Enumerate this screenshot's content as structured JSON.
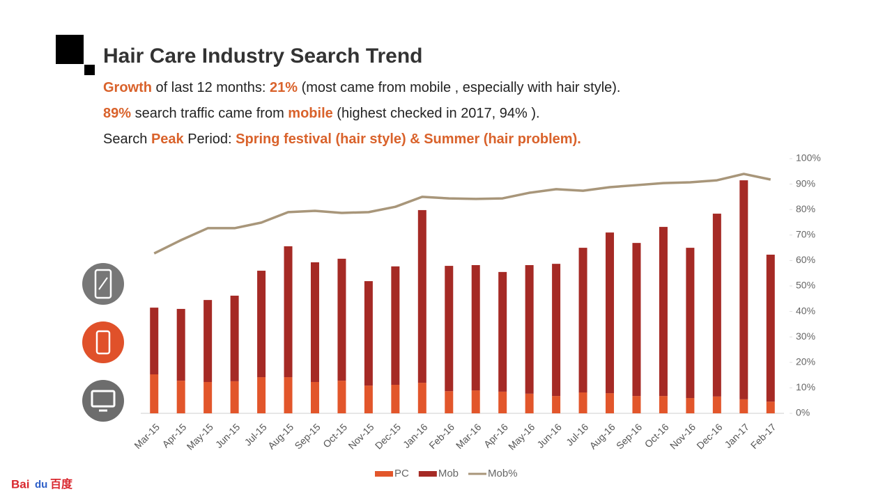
{
  "title": "Hair Care Industry Search Trend",
  "highlights": [
    [
      {
        "text": "Growth",
        "bold": true
      },
      {
        "text": " of last 12 months: ",
        "bold": false
      },
      {
        "text": "21%",
        "bold": true
      },
      {
        "text": " (most came from mobile , especially with hair style).",
        "bold": false
      }
    ],
    [
      {
        "text": "89%",
        "bold": true
      },
      {
        "text": " search traffic came from ",
        "bold": false
      },
      {
        "text": "mobile",
        "bold": true
      },
      {
        "text": " (highest checked in 2017, 94% ).",
        "bold": false
      }
    ],
    [
      {
        "text": "Search ",
        "bold": false
      },
      {
        "text": "Peak",
        "bold": true
      },
      {
        "text": " Period: ",
        "bold": false
      },
      {
        "text": "Spring festival (hair style) & Summer (hair problem).",
        "bold": true
      }
    ]
  ],
  "logo": {
    "latin": "Bai",
    "mark": "du",
    "chinese": "百度"
  },
  "chart_data": {
    "type": "bar",
    "stacked": true,
    "categories": [
      "Mar-15",
      "Apr-15",
      "May-15",
      "Jun-15",
      "Jul-15",
      "Aug-15",
      "Sep-15",
      "Oct-15",
      "Nov-15",
      "Dec-15",
      "Jan-16",
      "Feb-16",
      "Mar-16",
      "Apr-16",
      "May-16",
      "Jun-16",
      "Jul-16",
      "Aug-16",
      "Sep-16",
      "Oct-16",
      "Nov-16",
      "Dec-16",
      "Jan-17",
      "Feb-17"
    ],
    "series": [
      {
        "name": "PC",
        "color": "#e2562b",
        "values": [
          15.3,
          12.8,
          12.3,
          12.6,
          14.2,
          14.2,
          12.3,
          12.8,
          10.9,
          11.2,
          12.0,
          8.7,
          9.0,
          8.5,
          7.7,
          6.8,
          8.2,
          7.9,
          6.8,
          6.8,
          6.0,
          6.6,
          5.5,
          4.6
        ]
      },
      {
        "name": "Mob",
        "color": "#a52a25",
        "values": [
          26.2,
          28.2,
          32.2,
          33.6,
          41.8,
          51.4,
          47.0,
          47.9,
          41.0,
          46.5,
          67.8,
          49.2,
          49.2,
          47.0,
          50.5,
          51.9,
          56.8,
          63.1,
          60.1,
          66.4,
          59.0,
          71.8,
          86.0,
          57.7
        ]
      },
      {
        "name": "Mob%",
        "color": "#a8967a",
        "type": "line",
        "axis": "y2",
        "values": [
          62.8,
          68.0,
          72.7,
          72.7,
          74.9,
          79.0,
          79.5,
          78.7,
          79.0,
          81.1,
          85.0,
          84.4,
          84.2,
          84.4,
          86.6,
          88.0,
          87.4,
          88.8,
          89.6,
          90.4,
          90.7,
          91.5,
          94.0,
          91.8
        ]
      }
    ],
    "ylim": [
      0,
      100
    ],
    "y2lim": [
      0,
      100
    ],
    "y2ticks": [
      {
        "value": 0,
        "label": "0%"
      },
      {
        "value": 10,
        "label": "10%"
      },
      {
        "value": 20,
        "label": "20%"
      },
      {
        "value": 30,
        "label": "30%"
      },
      {
        "value": 40,
        "label": "40%"
      },
      {
        "value": 50,
        "label": "50%"
      },
      {
        "value": 60,
        "label": "60%"
      },
      {
        "value": 70,
        "label": "70%"
      },
      {
        "value": 80,
        "label": "80%"
      },
      {
        "value": 90,
        "label": "90%"
      },
      {
        "value": 100,
        "label": "100%"
      }
    ],
    "legend": "bottom"
  }
}
